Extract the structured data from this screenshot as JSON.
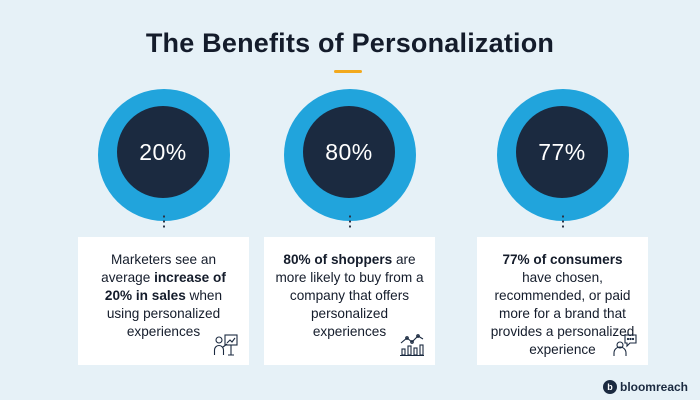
{
  "title": "The Benefits of Personalization",
  "colors": {
    "background": "#e6f1f7",
    "circle_outer": "#21a4dc",
    "circle_inner": "#1b2a40",
    "accent_underline": "#f2a91e"
  },
  "stats": [
    {
      "value": "20%",
      "text": [
        {
          "t": "Marketers see an average ",
          "b": false
        },
        {
          "t": "increase of 20% in sales",
          "b": true
        },
        {
          "t": " when using personalized experiences",
          "b": false
        }
      ],
      "icon": "presenter-chart-icon"
    },
    {
      "value": "80%",
      "text": [
        {
          "t": "80% of shoppers",
          "b": true
        },
        {
          "t": " are more likely to buy from a company that offers personalized experiences",
          "b": false
        }
      ],
      "icon": "line-bar-chart-icon"
    },
    {
      "value": "77%",
      "text": [
        {
          "t": "77% of consumers",
          "b": true
        },
        {
          "t": " have chosen, recommended, or paid more for a brand that provides a personalized experience",
          "b": false
        }
      ],
      "icon": "person-chat-icon"
    }
  ],
  "brand": {
    "name": "bloomreach",
    "mark": "b",
    "icon": "bloomreach-logo-icon"
  }
}
